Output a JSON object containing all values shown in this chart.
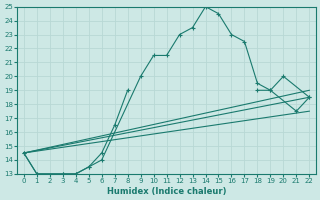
{
  "xlabel": "Humidex (Indice chaleur)",
  "ylabel": "",
  "bg_color": "#cde8e5",
  "grid_color": "#b8d8d5",
  "line_color": "#1a7a6e",
  "xlim": [
    -0.5,
    22.5
  ],
  "ylim": [
    13,
    25
  ],
  "yticks": [
    13,
    14,
    15,
    16,
    17,
    18,
    19,
    20,
    21,
    22,
    23,
    24,
    25
  ],
  "xticks": [
    0,
    1,
    2,
    3,
    4,
    5,
    6,
    7,
    8,
    9,
    10,
    11,
    12,
    13,
    14,
    15,
    16,
    17,
    18,
    19,
    20,
    21,
    22
  ],
  "series_main": {
    "x": [
      0,
      1,
      3,
      4,
      5,
      6,
      9,
      10,
      11,
      12,
      13,
      14,
      15,
      16,
      17,
      18,
      19,
      20,
      22
    ],
    "y": [
      14.5,
      13.0,
      13.0,
      13.0,
      13.5,
      14.0,
      20.0,
      21.5,
      21.5,
      23.0,
      23.5,
      25.0,
      24.5,
      23.0,
      22.5,
      19.5,
      19.0,
      20.0,
      18.5
    ]
  },
  "series_second": {
    "segments": [
      {
        "x": [
          0,
          1,
          3,
          4,
          5,
          6,
          7,
          8
        ],
        "y": [
          14.5,
          13.0,
          13.0,
          13.0,
          13.5,
          14.5,
          16.5,
          19.0
        ]
      },
      {
        "x": [
          18,
          19,
          21,
          22
        ],
        "y": [
          19.0,
          19.0,
          17.5,
          18.5
        ]
      }
    ]
  },
  "trend_lines": [
    {
      "x": [
        0,
        22
      ],
      "y": [
        14.5,
        19.0
      ]
    },
    {
      "x": [
        0,
        22
      ],
      "y": [
        14.5,
        18.5
      ]
    },
    {
      "x": [
        0,
        22
      ],
      "y": [
        14.5,
        17.5
      ]
    }
  ]
}
